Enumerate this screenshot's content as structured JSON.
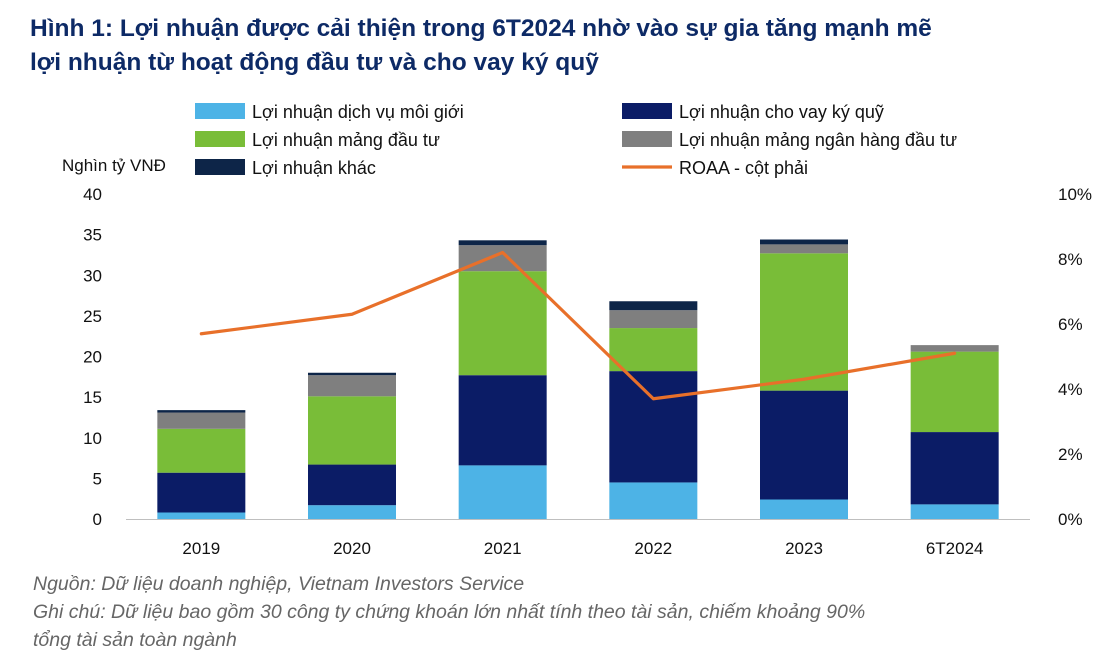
{
  "title": {
    "line1": "Hình 1:  Lợi nhuận được cải thiện trong 6T2024 nhờ vào sự gia tăng mạnh mẽ",
    "line2": "lợi nhuận từ hoạt động đầu tư và cho vay ký quỹ"
  },
  "notes": {
    "source": "Nguồn: Dữ liệu doanh nghiệp, Vietnam Investors Service",
    "note_line1": "Ghi chú: Dữ liệu bao gồm 30 công ty chứng khoán lớn nhất tính theo tài sản, chiếm khoảng 90%",
    "note_line2": "tổng tài sản toàn ngành"
  },
  "chart_data": {
    "type": "bar",
    "stacked": true,
    "categories": [
      "2019",
      "2020",
      "2021",
      "2022",
      "2023",
      "6T2024"
    ],
    "ylabel": "Nghìn tỷ VNĐ",
    "ylim": [
      0,
      40
    ],
    "yticks": [
      "0",
      "5",
      "10",
      "15",
      "20",
      "25",
      "30",
      "35",
      "40"
    ],
    "y2lim": [
      0,
      10
    ],
    "y2ticks": [
      "0%",
      "2%",
      "4%",
      "6%",
      "8%",
      "10%"
    ],
    "series": [
      {
        "name": "Lợi nhuận dịch vụ môi giới",
        "color": "#4db3e6",
        "values": [
          0.8,
          1.7,
          6.6,
          4.5,
          2.4,
          1.8
        ]
      },
      {
        "name": "Lợi nhuận cho vay ký quỹ",
        "color": "#0b1c66",
        "values": [
          4.9,
          5.0,
          11.1,
          13.7,
          13.4,
          8.9
        ]
      },
      {
        "name": "Lợi nhuận mảng đầu tư",
        "color": "#79bd38",
        "values": [
          5.4,
          8.4,
          12.8,
          5.3,
          16.9,
          9.9
        ]
      },
      {
        "name": "Lợi nhuận mảng ngân hàng đầu tư",
        "color": "#7f7f7f",
        "values": [
          2.0,
          2.6,
          3.2,
          2.2,
          1.1,
          0.8
        ]
      },
      {
        "name": "Lợi nhuận khác",
        "color": "#0d2548",
        "values": [
          0.3,
          0.3,
          0.6,
          1.1,
          0.6,
          0.0
        ]
      }
    ],
    "line_series": {
      "name": "ROAA - cột phải",
      "color": "#e8702a",
      "axis": "right",
      "values": [
        5.7,
        6.3,
        8.2,
        3.7,
        4.3,
        5.1
      ]
    },
    "legend_position": "top"
  }
}
